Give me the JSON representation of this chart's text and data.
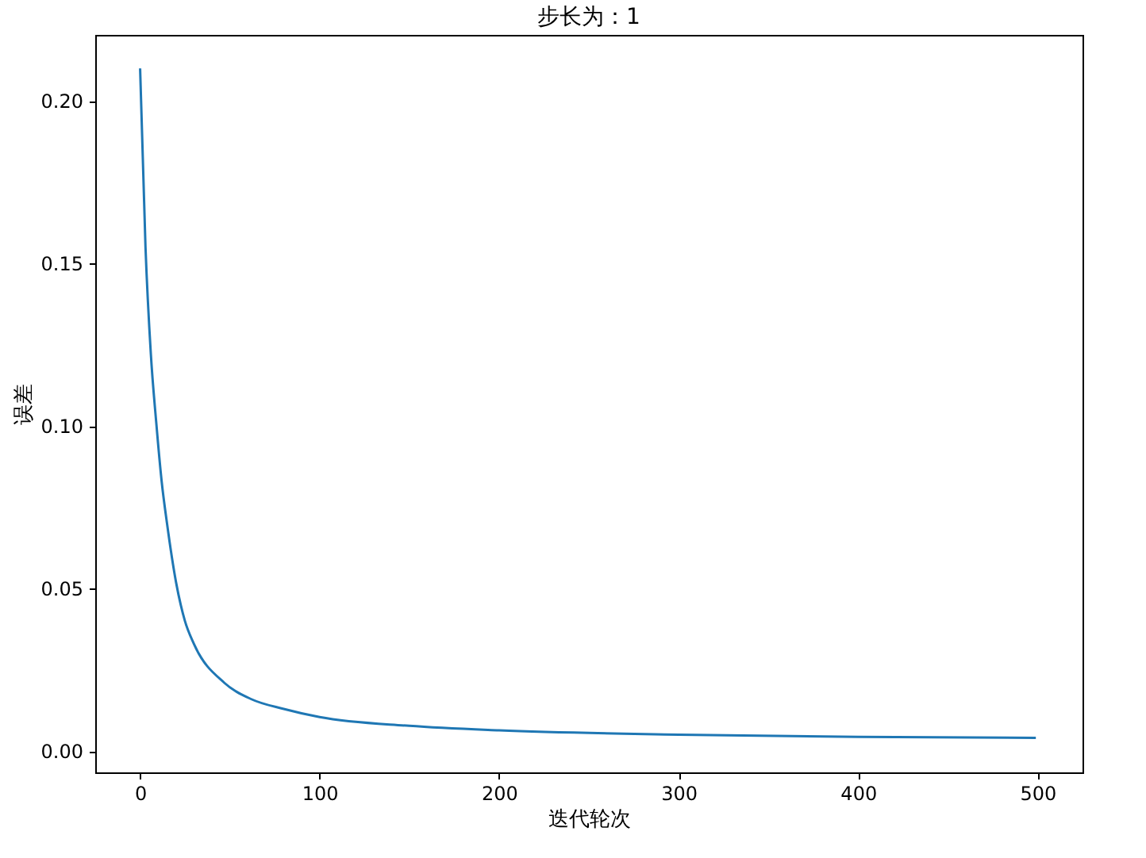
{
  "chart_data": {
    "type": "line",
    "title": "步长为：1",
    "xlabel": "迭代轮次",
    "ylabel": "误差",
    "x": [
      0,
      3,
      6,
      9,
      12,
      15,
      20,
      25,
      30,
      47,
      62,
      80,
      100,
      150,
      200,
      300,
      400,
      499
    ],
    "series": [
      {
        "color": "#1f77b4",
        "values": [
          0.21,
          0.155,
          0.122,
          0.101,
          0.083,
          0.07,
          0.052,
          0.04,
          0.033,
          0.021,
          0.016,
          0.013,
          0.0105,
          0.0078,
          0.0064,
          0.0051,
          0.0044,
          0.0041
        ]
      }
    ],
    "xlim": [
      -25,
      525
    ],
    "ylim": [
      -0.0065,
      0.2203
    ],
    "xticks": [
      0,
      100,
      200,
      300,
      400,
      500
    ],
    "yticks": [
      {
        "value": 0,
        "label": "0.00"
      },
      {
        "value": 0.05,
        "label": "0.05"
      },
      {
        "value": 0.1,
        "label": "0.10"
      },
      {
        "value": 0.15,
        "label": "0.15"
      },
      {
        "value": 0.2,
        "label": "0.20"
      }
    ],
    "grid": false
  }
}
